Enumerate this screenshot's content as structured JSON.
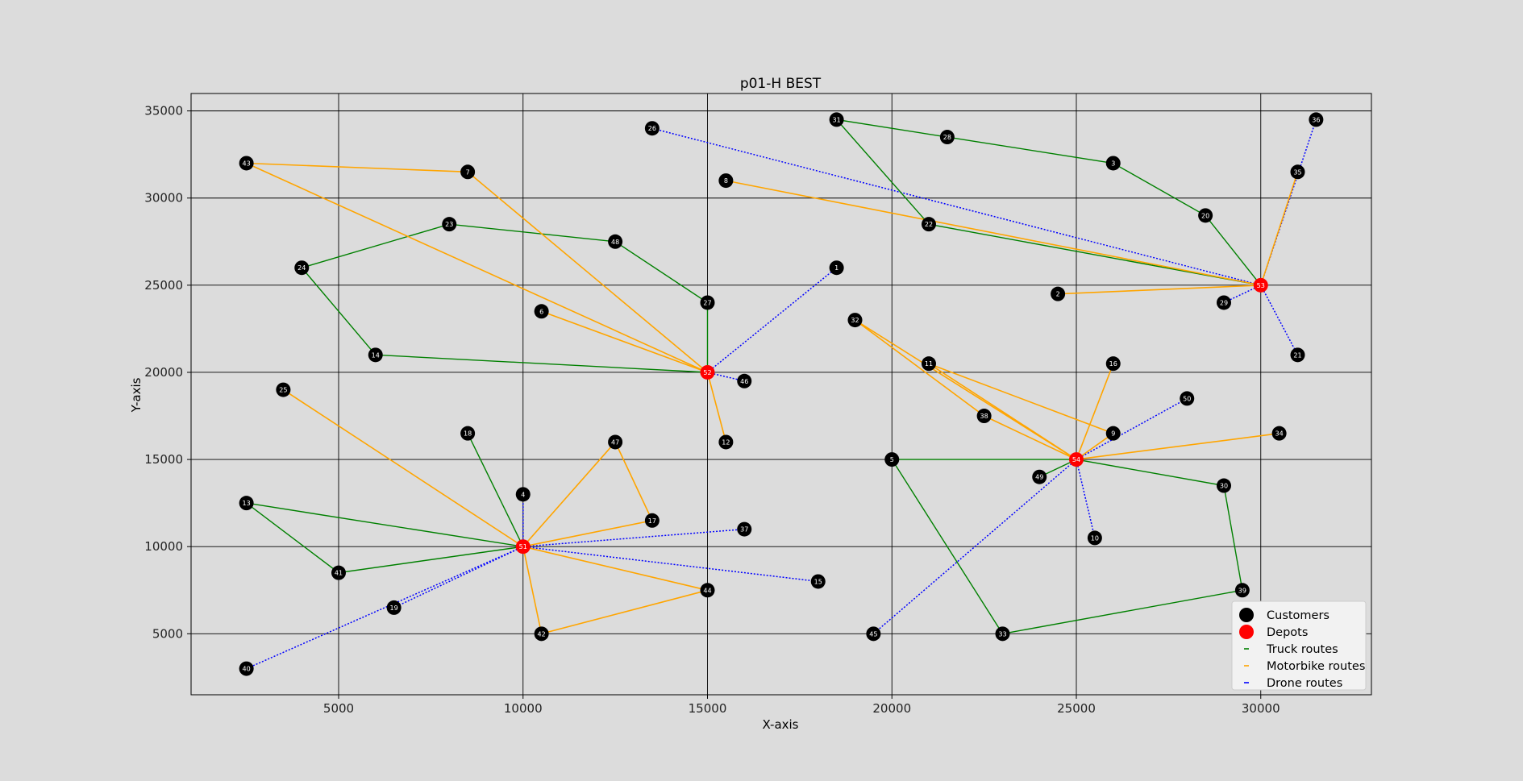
{
  "chart_data": {
    "type": "scatter",
    "title": "p01-H BEST",
    "xlabel": "X-axis",
    "ylabel": "Y-axis",
    "xlim": [
      1000,
      33000
    ],
    "ylim": [
      1500,
      36000
    ],
    "x_ticks": [
      5000,
      10000,
      15000,
      20000,
      25000,
      30000
    ],
    "y_ticks": [
      5000,
      10000,
      15000,
      20000,
      25000,
      30000,
      35000
    ],
    "grid": true,
    "legend_position": "lower-right",
    "legend": [
      {
        "label": "Customers",
        "kind": "customer"
      },
      {
        "label": "Depots",
        "kind": "depot"
      },
      {
        "label": "Truck routes",
        "kind": "truck"
      },
      {
        "label": "Motorbike routes",
        "kind": "motorbike"
      },
      {
        "label": "Drone routes",
        "kind": "drone"
      }
    ],
    "colors": {
      "background": "#dcdcdc",
      "customer": "#000000",
      "depot": "#ff0000",
      "truck": "#008000",
      "motorbike": "#ffa500",
      "drone": "#0000ff",
      "grid": "#000000"
    },
    "depots": [
      {
        "id": "52",
        "x": 15000,
        "y": 20000
      },
      {
        "id": "51",
        "x": 10000,
        "y": 10000
      },
      {
        "id": "53",
        "x": 30000,
        "y": 25000
      },
      {
        "id": "54",
        "x": 25000,
        "y": 15000
      }
    ],
    "customers": [
      {
        "id": "1",
        "x": 18500,
        "y": 26000
      },
      {
        "id": "3",
        "x": 26000,
        "y": 32000
      },
      {
        "id": "4",
        "x": 10000,
        "y": 13000
      },
      {
        "id": "5",
        "x": 20000,
        "y": 15000
      },
      {
        "id": "6",
        "x": 10500,
        "y": 23500
      },
      {
        "id": "7",
        "x": 8500,
        "y": 31500
      },
      {
        "id": "8",
        "x": 15500,
        "y": 31000
      },
      {
        "id": "9",
        "x": 26000,
        "y": 16500
      },
      {
        "id": "10",
        "x": 25500,
        "y": 10500
      },
      {
        "id": "11",
        "x": 21000,
        "y": 20500
      },
      {
        "id": "12",
        "x": 15500,
        "y": 16000
      },
      {
        "id": "13",
        "x": 2500,
        "y": 12500
      },
      {
        "id": "14",
        "x": 6000,
        "y": 21000
      },
      {
        "id": "15",
        "x": 18000,
        "y": 8000
      },
      {
        "id": "16",
        "x": 26000,
        "y": 20500
      },
      {
        "id": "17",
        "x": 13500,
        "y": 11500
      },
      {
        "id": "18",
        "x": 8500,
        "y": 16500
      },
      {
        "id": "19",
        "x": 6500,
        "y": 6500
      },
      {
        "id": "20",
        "x": 28500,
        "y": 29000
      },
      {
        "id": "21",
        "x": 31000,
        "y": 21000
      },
      {
        "id": "22",
        "x": 21000,
        "y": 28500
      },
      {
        "id": "23",
        "x": 8000,
        "y": 28500
      },
      {
        "id": "24",
        "x": 4000,
        "y": 26000
      },
      {
        "id": "25",
        "x": 3500,
        "y": 19000
      },
      {
        "id": "26",
        "x": 13500,
        "y": 34000
      },
      {
        "id": "27",
        "x": 15000,
        "y": 24000
      },
      {
        "id": "28",
        "x": 21500,
        "y": 33500
      },
      {
        "id": "29",
        "x": 29000,
        "y": 24000
      },
      {
        "id": "30",
        "x": 29000,
        "y": 13500
      },
      {
        "id": "31",
        "x": 18500,
        "y": 34500
      },
      {
        "id": "32",
        "x": 19000,
        "y": 23000
      },
      {
        "id": "33",
        "x": 23000,
        "y": 5000
      },
      {
        "id": "34",
        "x": 30500,
        "y": 16500
      },
      {
        "id": "35",
        "x": 31000,
        "y": 31500
      },
      {
        "id": "36",
        "x": 31500,
        "y": 34500
      },
      {
        "id": "37",
        "x": 16000,
        "y": 11000
      },
      {
        "id": "38",
        "x": 22500,
        "y": 17500
      },
      {
        "id": "39",
        "x": 29500,
        "y": 7500
      },
      {
        "id": "40",
        "x": 2500,
        "y": 3000
      },
      {
        "id": "41",
        "x": 5000,
        "y": 8500
      },
      {
        "id": "42",
        "x": 10500,
        "y": 5000
      },
      {
        "id": "43",
        "x": 2500,
        "y": 32000
      },
      {
        "id": "44",
        "x": 15000,
        "y": 7500
      },
      {
        "id": "45",
        "x": 19500,
        "y": 5000
      },
      {
        "id": "46",
        "x": 16000,
        "y": 19500
      },
      {
        "id": "47",
        "x": 12500,
        "y": 16000
      },
      {
        "id": "48",
        "x": 12500,
        "y": 27500
      },
      {
        "id": "49",
        "x": 24000,
        "y": 14000
      },
      {
        "id": "50",
        "x": 28000,
        "y": 18500
      },
      {
        "id": "2",
        "x": 24500,
        "y": 24500
      }
    ],
    "routes": {
      "truck": [
        [
          "52",
          "27",
          "48",
          "23",
          "24",
          "14",
          "52"
        ],
        [
          "51",
          "13",
          "41",
          "51"
        ],
        [
          "51",
          "18"
        ],
        [
          "53",
          "22",
          "31",
          "28",
          "3",
          "20",
          "53"
        ],
        [
          "54",
          "5",
          "33",
          "39",
          "30",
          "54"
        ],
        [
          "54",
          "49"
        ]
      ],
      "motorbike": [
        [
          "52",
          "7",
          "43",
          "52"
        ],
        [
          "52",
          "6"
        ],
        [
          "52",
          "12"
        ],
        [
          "51",
          "25"
        ],
        [
          "51",
          "47",
          "17",
          "51"
        ],
        [
          "51",
          "42",
          "44",
          "51"
        ],
        [
          "53",
          "8"
        ],
        [
          "53",
          "2"
        ],
        [
          "53",
          "35"
        ],
        [
          "54",
          "32",
          "38",
          "54"
        ],
        [
          "54",
          "11",
          "9",
          "54"
        ],
        [
          "54",
          "16"
        ],
        [
          "54",
          "34"
        ]
      ],
      "drone": [
        [
          "52",
          "1"
        ],
        [
          "52",
          "46"
        ],
        [
          "51",
          "4"
        ],
        [
          "51",
          "19"
        ],
        [
          "51",
          "40"
        ],
        [
          "51",
          "37"
        ],
        [
          "51",
          "15"
        ],
        [
          "53",
          "26"
        ],
        [
          "53",
          "36"
        ],
        [
          "53",
          "29"
        ],
        [
          "53",
          "21"
        ],
        [
          "54",
          "50"
        ],
        [
          "54",
          "10"
        ],
        [
          "54",
          "45"
        ]
      ]
    }
  }
}
